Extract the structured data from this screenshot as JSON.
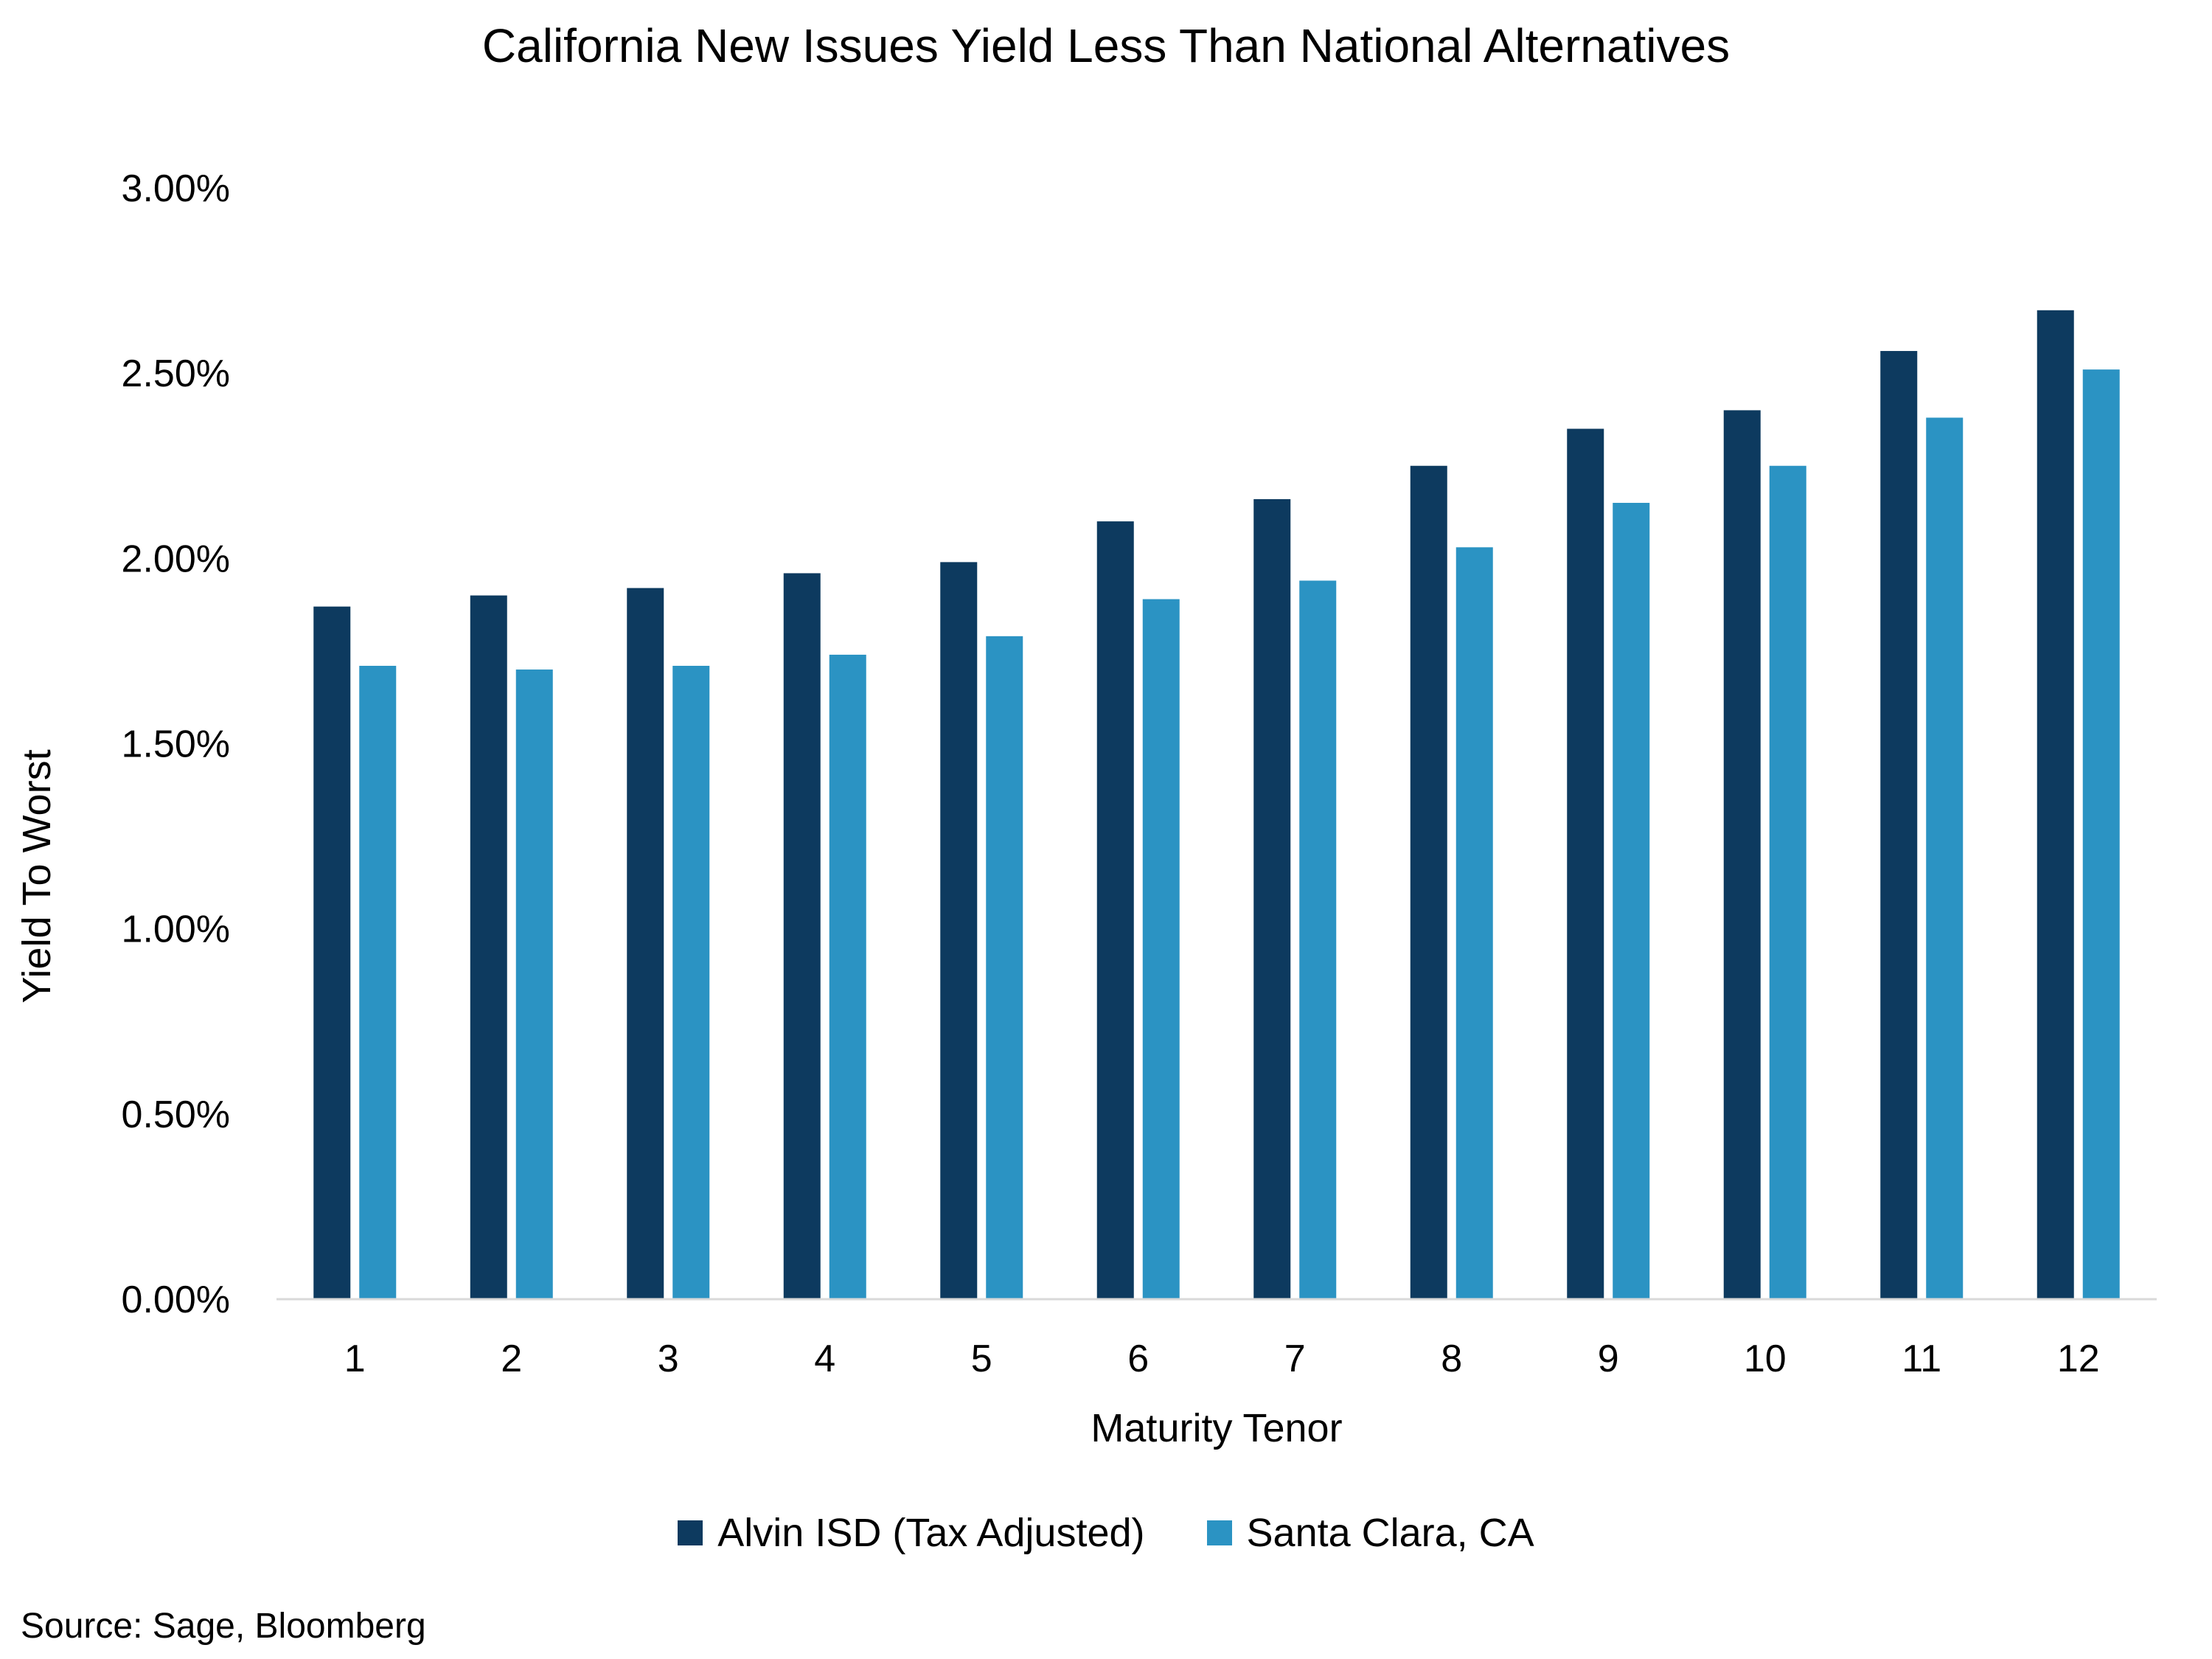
{
  "chart_data": {
    "type": "bar",
    "title": "California New Issues Yield Less Than National Alternatives",
    "xlabel": "Maturity Tenor",
    "ylabel": "Yield To Worst",
    "categories": [
      "1",
      "2",
      "3",
      "4",
      "5",
      "6",
      "7",
      "8",
      "9",
      "10",
      "11",
      "12"
    ],
    "series": [
      {
        "name": "Alvin ISD (Tax Adjusted)",
        "color": "#0d3a5f",
        "values": [
          1.87,
          1.9,
          1.92,
          1.96,
          1.99,
          2.1,
          2.16,
          2.25,
          2.35,
          2.4,
          2.56,
          2.67
        ]
      },
      {
        "name": "Santa Clara, CA",
        "color": "#2b93c3",
        "values": [
          1.71,
          1.7,
          1.71,
          1.74,
          1.79,
          1.89,
          1.94,
          2.03,
          2.15,
          2.25,
          2.38,
          2.51
        ]
      }
    ],
    "ylim": [
      0,
      3.0
    ],
    "yticks": [
      "0.00%",
      "0.50%",
      "1.00%",
      "1.50%",
      "2.00%",
      "2.50%",
      "3.00%"
    ],
    "grid": false,
    "legend": "bottom-center"
  },
  "source_note": "Source: Sage, Bloomberg"
}
